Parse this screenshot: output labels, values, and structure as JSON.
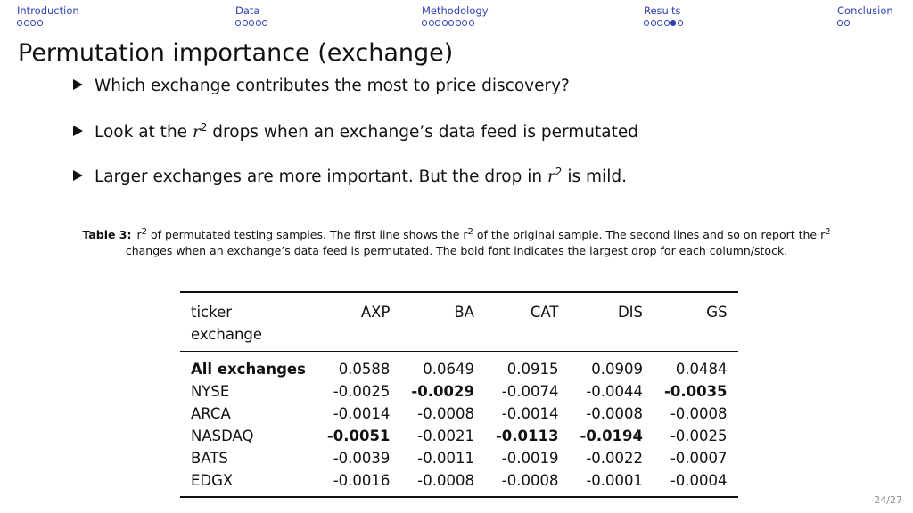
{
  "nav": {
    "sections": [
      {
        "label": "Introduction",
        "dots": 4,
        "current": -1
      },
      {
        "label": "Data",
        "dots": 5,
        "current": -1
      },
      {
        "label": "Methodology",
        "dots": 8,
        "current": -1
      },
      {
        "label": "Results",
        "dots": 6,
        "current": 4
      },
      {
        "label": "Conclusion",
        "dots": 2,
        "current": -1
      }
    ]
  },
  "slide": {
    "title": "Permutation importance (exchange)",
    "bullets": {
      "b1": "Which exchange contributes the most to price discovery?",
      "b2_pre": "Look at the ",
      "b2_var": "r",
      "b2_sup": "2",
      "b2_post": " drops when an exchange’s data feed is permutated",
      "b3_pre": "Larger exchanges are more important.  But the drop in ",
      "b3_var": "r",
      "b3_sup": "2",
      "b3_post": " is mild."
    },
    "page_number": "24/27"
  },
  "table": {
    "caption": {
      "label": "Table 3:",
      "p1": "r",
      "s1": "2",
      "p2": " of permutated testing samples. The first line shows the r",
      "s2": "2",
      "p3": " of the original sample. The second lines and so on report the r",
      "s3": "2",
      "p4": " changes when an exchange’s data feed is permutated. The bold font indicates the largest drop for each column/stock."
    },
    "header": {
      "ticker": "ticker",
      "exchange": "exchange",
      "cols": [
        "AXP",
        "BA",
        "CAT",
        "DIS",
        "GS"
      ]
    },
    "rows": [
      {
        "label": "All exchanges",
        "bold_label": true,
        "values": [
          "0.0588",
          "0.0649",
          "0.0915",
          "0.0909",
          "0.0484"
        ],
        "bold": [
          false,
          false,
          false,
          false,
          false
        ]
      },
      {
        "label": "NYSE",
        "bold_label": false,
        "values": [
          "-0.0025",
          "-0.0029",
          "-0.0074",
          "-0.0044",
          "-0.0035"
        ],
        "bold": [
          false,
          true,
          false,
          false,
          true
        ]
      },
      {
        "label": "ARCA",
        "bold_label": false,
        "values": [
          "-0.0014",
          "-0.0008",
          "-0.0014",
          "-0.0008",
          "-0.0008"
        ],
        "bold": [
          false,
          false,
          false,
          false,
          false
        ]
      },
      {
        "label": "NASDAQ",
        "bold_label": false,
        "values": [
          "-0.0051",
          "-0.0021",
          "-0.0113",
          "-0.0194",
          "-0.0025"
        ],
        "bold": [
          true,
          false,
          true,
          true,
          false
        ]
      },
      {
        "label": "BATS",
        "bold_label": false,
        "values": [
          "-0.0039",
          "-0.0011",
          "-0.0019",
          "-0.0022",
          "-0.0007"
        ],
        "bold": [
          false,
          false,
          false,
          false,
          false
        ]
      },
      {
        "label": "EDGX",
        "bold_label": false,
        "values": [
          "-0.0016",
          "-0.0008",
          "-0.0008",
          "-0.0001",
          "-0.0004"
        ],
        "bold": [
          false,
          false,
          false,
          false,
          false
        ]
      }
    ]
  }
}
